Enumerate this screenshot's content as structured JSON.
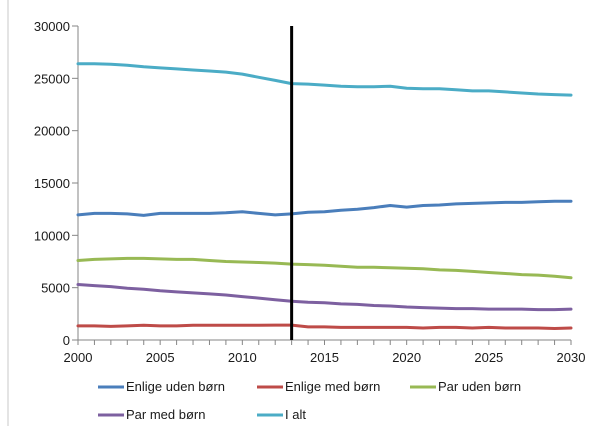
{
  "chart_data": {
    "type": "line",
    "title": "",
    "xlabel": "",
    "ylabel": "",
    "xlim": [
      2000,
      2030
    ],
    "ylim": [
      0,
      30000
    ],
    "x_ticks": [
      2000,
      2005,
      2010,
      2015,
      2020,
      2025,
      2030
    ],
    "y_ticks": [
      0,
      5000,
      10000,
      15000,
      20000,
      25000,
      30000
    ],
    "x_tick_labels": [
      "2000",
      "2005",
      "2010",
      "2015",
      "2020",
      "2025",
      "2030"
    ],
    "y_tick_labels": [
      "0",
      "5000",
      "10000",
      "15000",
      "20000",
      "25000",
      "30000"
    ],
    "grid": false,
    "legend_position": "bottom",
    "vertical_marker_x": 2013,
    "marker_color": "#000000",
    "x": [
      2000,
      2001,
      2002,
      2003,
      2004,
      2005,
      2006,
      2007,
      2008,
      2009,
      2010,
      2011,
      2012,
      2013,
      2014,
      2015,
      2016,
      2017,
      2018,
      2019,
      2020,
      2021,
      2022,
      2023,
      2024,
      2025,
      2026,
      2027,
      2028,
      2029,
      2030
    ],
    "series": [
      {
        "name": "Enlige uden børn",
        "color": "#4a7ebb",
        "values": [
          11950,
          12100,
          12100,
          12050,
          11900,
          12100,
          12100,
          12100,
          12100,
          12150,
          12250,
          12100,
          11950,
          12050,
          12200,
          12250,
          12400,
          12500,
          12650,
          12850,
          12700,
          12850,
          12900,
          13000,
          13050,
          13100,
          13150,
          13150,
          13200,
          13250,
          13250
        ]
      },
      {
        "name": "Enlige med børn",
        "color": "#be4b48",
        "values": [
          1350,
          1350,
          1300,
          1350,
          1400,
          1350,
          1350,
          1400,
          1400,
          1400,
          1400,
          1400,
          1420,
          1420,
          1250,
          1250,
          1200,
          1200,
          1200,
          1200,
          1200,
          1150,
          1200,
          1200,
          1150,
          1200,
          1150,
          1150,
          1150,
          1100,
          1150
        ]
      },
      {
        "name": "Par uden børn",
        "color": "#98b954",
        "values": [
          7600,
          7700,
          7750,
          7800,
          7800,
          7750,
          7700,
          7700,
          7600,
          7500,
          7450,
          7400,
          7350,
          7250,
          7200,
          7150,
          7050,
          6950,
          6950,
          6900,
          6850,
          6800,
          6700,
          6650,
          6550,
          6450,
          6350,
          6250,
          6200,
          6100,
          5950
        ]
      },
      {
        "name": "Par med børn",
        "color": "#7d60a0",
        "values": [
          5300,
          5200,
          5100,
          4950,
          4850,
          4700,
          4600,
          4500,
          4400,
          4300,
          4150,
          4000,
          3850,
          3700,
          3600,
          3550,
          3450,
          3400,
          3300,
          3250,
          3150,
          3100,
          3050,
          3000,
          3000,
          2950,
          2950,
          2950,
          2900,
          2900,
          2950
        ]
      },
      {
        "name": "I alt",
        "color": "#4bacc6",
        "values": [
          26400,
          26400,
          26350,
          26250,
          26100,
          26000,
          25900,
          25800,
          25700,
          25600,
          25400,
          25100,
          24800,
          24500,
          24450,
          24350,
          24250,
          24200,
          24200,
          24250,
          24050,
          24000,
          24000,
          23900,
          23800,
          23800,
          23700,
          23600,
          23500,
          23450,
          23400
        ]
      }
    ]
  }
}
